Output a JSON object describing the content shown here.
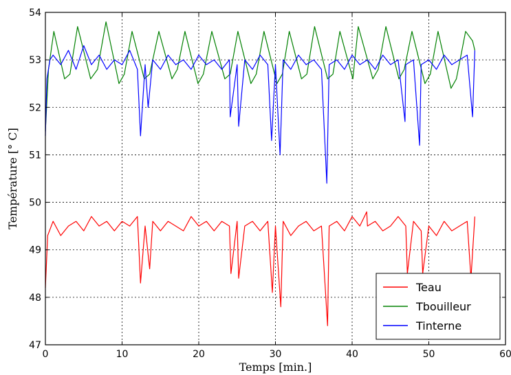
{
  "chart_data": {
    "type": "line",
    "xlabel": "Temps [min.]",
    "ylabel": "Température [° C]",
    "xlim": [
      0,
      60
    ],
    "ylim": [
      47,
      54
    ],
    "xticks": [
      0,
      10,
      20,
      30,
      40,
      50,
      60
    ],
    "yticks": [
      47,
      48,
      49,
      50,
      51,
      52,
      53,
      54
    ],
    "grid": true,
    "legend_position": "bottom-right",
    "series": [
      {
        "name": "Teau",
        "color": "#ff0000",
        "x": [
          0,
          0.3,
          1,
          2,
          3,
          4,
          5,
          6,
          7,
          8,
          9,
          10,
          11,
          12,
          12.4,
          13,
          13.6,
          14,
          15,
          16,
          17,
          18,
          19,
          20,
          21,
          22,
          23,
          24,
          24.2,
          25,
          25.2,
          26,
          27,
          28,
          29,
          29.6,
          30,
          30.7,
          31,
          32,
          33,
          34,
          35,
          36,
          36.8,
          37,
          38,
          39,
          40,
          41,
          41.9,
          42,
          43,
          44,
          45,
          46,
          47,
          47.2,
          48,
          49,
          49.2,
          50,
          51,
          52,
          53,
          54,
          55,
          55.5,
          56
        ],
        "y": [
          48.2,
          49.3,
          49.6,
          49.3,
          49.5,
          49.6,
          49.4,
          49.7,
          49.5,
          49.6,
          49.4,
          49.6,
          49.5,
          49.7,
          48.3,
          49.5,
          48.6,
          49.6,
          49.4,
          49.6,
          49.5,
          49.4,
          49.7,
          49.5,
          49.6,
          49.4,
          49.6,
          49.5,
          48.5,
          49.6,
          48.4,
          49.5,
          49.6,
          49.4,
          49.6,
          48.1,
          49.5,
          47.8,
          49.6,
          49.3,
          49.5,
          49.6,
          49.4,
          49.5,
          47.4,
          49.5,
          49.6,
          49.4,
          49.7,
          49.5,
          49.8,
          49.5,
          49.6,
          49.4,
          49.5,
          49.7,
          49.5,
          48.5,
          49.6,
          49.4,
          48.5,
          49.5,
          49.3,
          49.6,
          49.4,
          49.5,
          49.6,
          48.4,
          49.7
        ]
      },
      {
        "name": "Tbouilleur",
        "color": "#008000",
        "x": [
          0,
          0.4,
          1.1,
          2.5,
          3.2,
          4.2,
          5.9,
          6.8,
          7.9,
          9.6,
          10.3,
          11.3,
          12.9,
          13.6,
          14.8,
          16.5,
          17.2,
          18.2,
          19.9,
          20.6,
          21.7,
          23.4,
          24.1,
          25.1,
          26.8,
          27.5,
          28.5,
          30.2,
          30.9,
          31.8,
          33.4,
          34.1,
          35.1,
          36.8,
          37.5,
          38.4,
          40.1,
          40.8,
          42.7,
          43.4,
          44.4,
          46.1,
          46.8,
          47.8,
          49.5,
          50.2,
          51.2,
          52.9,
          53.6,
          54.8,
          55.7,
          56
        ],
        "y": [
          51.5,
          52.8,
          53.6,
          52.6,
          52.7,
          53.7,
          52.6,
          52.8,
          53.8,
          52.5,
          52.7,
          53.6,
          52.6,
          52.7,
          53.6,
          52.6,
          52.8,
          53.6,
          52.5,
          52.7,
          53.6,
          52.6,
          52.7,
          53.6,
          52.5,
          52.7,
          53.6,
          52.5,
          52.7,
          53.6,
          52.6,
          52.7,
          53.7,
          52.6,
          52.7,
          53.6,
          52.6,
          53.7,
          52.6,
          52.8,
          53.7,
          52.6,
          52.8,
          53.6,
          52.5,
          52.7,
          53.6,
          52.4,
          52.6,
          53.6,
          53.4,
          53.2
        ]
      },
      {
        "name": "Tinterne",
        "color": "#0000ff",
        "x": [
          0,
          0.2,
          0.6,
          1,
          2,
          3,
          4,
          5,
          6,
          7,
          8,
          9,
          10,
          11,
          12,
          12.4,
          13,
          13.4,
          14,
          15,
          16,
          17,
          18,
          19,
          20,
          21,
          22,
          23,
          24,
          24.1,
          25,
          25.2,
          26,
          27,
          28,
          29,
          29.5,
          30,
          30.6,
          31,
          32,
          33,
          34,
          35,
          36,
          36.7,
          37,
          38,
          39,
          40,
          41,
          42,
          43,
          44,
          45,
          46,
          46.9,
          47,
          48,
          48.8,
          49,
          50,
          51,
          52,
          53,
          54,
          55,
          55.7,
          56
        ],
        "y": [
          51.4,
          52.6,
          53.0,
          53.1,
          52.9,
          53.2,
          52.8,
          53.3,
          52.9,
          53.1,
          52.8,
          53.0,
          52.9,
          53.2,
          52.8,
          51.4,
          52.9,
          52.0,
          53.0,
          52.8,
          53.1,
          52.9,
          53.0,
          52.8,
          53.1,
          52.9,
          53.0,
          52.8,
          53.0,
          51.8,
          52.9,
          51.6,
          53.0,
          52.8,
          53.1,
          52.9,
          51.3,
          52.9,
          51.0,
          53.0,
          52.8,
          53.1,
          52.9,
          53.0,
          52.8,
          50.4,
          52.9,
          53.0,
          52.8,
          53.1,
          52.9,
          53.0,
          52.8,
          53.1,
          52.9,
          53.0,
          51.7,
          52.9,
          53.0,
          51.2,
          52.9,
          53.0,
          52.8,
          53.1,
          52.9,
          53.0,
          53.1,
          51.8,
          53.2
        ]
      }
    ]
  }
}
